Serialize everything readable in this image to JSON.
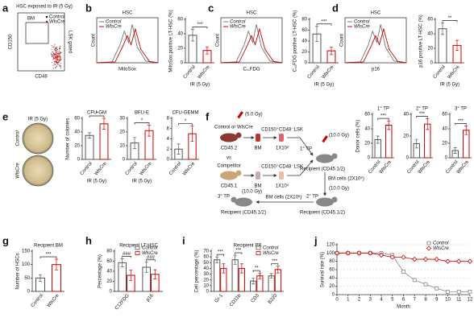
{
  "panel_labels": [
    "a",
    "b",
    "c",
    "d",
    "e",
    "f",
    "g",
    "h",
    "i",
    "j"
  ],
  "panel_a": {
    "title": "HSC exposed to IR (5 Gy)",
    "gate": "BM",
    "legend": [
      "Control",
      "WlsCre"
    ],
    "y_label": "CD150",
    "x_label": "CD48",
    "side_label": "LSK gated"
  },
  "histograms": [
    {
      "title": "HSC",
      "legend": [
        "Control",
        "WlsCre"
      ],
      "x_label": "MitoSox",
      "y_label": "Count"
    },
    {
      "title": "HSC",
      "legend": [
        "Control",
        "WlsCre"
      ],
      "x_label": "C₁₁FDG",
      "y_label": "Count"
    },
    {
      "title": "HSC",
      "legend": [
        "Control",
        "WlsCre"
      ],
      "x_label": "p16",
      "y_label": "Count"
    }
  ],
  "panel_e": {
    "title": "IR (5 Gy)",
    "rows": [
      "Control",
      "WlsCre"
    ]
  },
  "panel_f": {
    "dose_donor": "(5.0 Gy)",
    "donor": "Control or WlsCre",
    "donor_strain": "CD45.2",
    "donor_bm": "BM",
    "donor_cells": "CD150⁺CD48⁻LSK",
    "donor_number": "1X10²",
    "vs": "vs",
    "competitor": "Competitor",
    "competitor_strain": "CD45.1",
    "competitor_bm": "BM",
    "competitor_cells": "CD150⁺CD48⁻LSK",
    "competitor_number": "1X10⁵",
    "tp1": "1° TP",
    "dose1": "(10.0 Gy)",
    "recipient1": "Recipient (CD45.1/2)",
    "bm_cells1": "BM cells (2X10⁶)",
    "dose2": "(10.0 Gy)",
    "tp2": "2° TP",
    "recipient2": "Recipient (CD45.1/2)",
    "bm_cells2": "BM cells (2X10⁶)",
    "tp3": "3° TP",
    "dose3": "(10.0 Gy)",
    "recipient3": "Recipient (CD45.1/2)"
  },
  "chart_data": [
    {
      "type": "bar",
      "y_label": "MitoSox positive LT-HSC (%)",
      "x_label": "IR (5 Gy)",
      "categories": [
        "Control",
        "WlsCre"
      ],
      "values": [
        38,
        17
      ],
      "errors": [
        8,
        5
      ],
      "colors": [
        "#555555",
        "#cc0000"
      ],
      "ylim": [
        0,
        60
      ],
      "yticks": [
        0,
        20,
        40,
        60
      ],
      "significance": "***"
    },
    {
      "type": "bar",
      "y_label": "C₁₁FDG positive LT-HSC (%)",
      "x_label": "IR (5 Gy)",
      "categories": [
        "Control",
        "WlsCre"
      ],
      "values": [
        53,
        22
      ],
      "errors": [
        14,
        7
      ],
      "colors": [
        "#555555",
        "#cc0000"
      ],
      "ylim": [
        0,
        80
      ],
      "yticks": [
        0,
        20,
        40,
        60,
        80
      ],
      "significance": "***"
    },
    {
      "type": "bar",
      "y_label": "p16 positive LT-HSC (%)",
      "x_label": "IR (5 Gy)",
      "categories": [
        "Control",
        "WlsCre"
      ],
      "values": [
        47,
        24
      ],
      "errors": [
        8,
        7
      ],
      "colors": [
        "#555555",
        "#cc0000"
      ],
      "ylim": [
        0,
        60
      ],
      "yticks": [
        0,
        20,
        40,
        60
      ],
      "significance": "**"
    },
    {
      "type": "bar",
      "title": "CFU-GM",
      "y_label": "Number of colonies",
      "x_label": "IR (5 Gy)",
      "categories": [
        "Control",
        "WlsCre"
      ],
      "values": [
        35,
        52
      ],
      "errors": [
        4,
        8
      ],
      "colors": [
        "#555555",
        "#cc0000"
      ],
      "ylim": [
        0,
        60
      ],
      "yticks": [
        0,
        20,
        40,
        60
      ],
      "significance": "*"
    },
    {
      "type": "bar",
      "title": "BFU-E",
      "x_label": "IR (5 Gy)",
      "categories": [
        "Control",
        "WlsCre"
      ],
      "values": [
        12,
        21
      ],
      "errors": [
        4,
        4
      ],
      "colors": [
        "#555555",
        "#cc0000"
      ],
      "ylim": [
        0,
        30
      ],
      "yticks": [
        0,
        10,
        20,
        30
      ],
      "significance": "*"
    },
    {
      "type": "bar",
      "title": "CFU-GEMM",
      "categories": [
        "Control",
        "WlsCre"
      ],
      "values": [
        2,
        5
      ],
      "errors": [
        1,
        1.5
      ],
      "colors": [
        "#555555",
        "#cc0000"
      ],
      "ylim": [
        0,
        8
      ],
      "yticks": [
        0,
        2,
        4,
        6,
        8
      ],
      "significance": "*"
    },
    {
      "type": "bar",
      "title": "1° TP",
      "y_label": "Donor cells (%)",
      "categories": [
        "Control",
        "WlsCre"
      ],
      "values": [
        25,
        45
      ],
      "errors": [
        5,
        6
      ],
      "colors": [
        "#555555",
        "#cc0000"
      ],
      "ylim": [
        0,
        60
      ],
      "yticks": [
        0,
        20,
        40,
        60
      ],
      "significance": "***"
    },
    {
      "type": "bar",
      "title": "2° TP",
      "categories": [
        "Control",
        "WlsCre"
      ],
      "values": [
        13,
        31
      ],
      "errors": [
        4,
        5
      ],
      "colors": [
        "#555555",
        "#cc0000"
      ],
      "ylim": [
        0,
        40
      ],
      "yticks": [
        0,
        20,
        40
      ],
      "significance": "***"
    },
    {
      "type": "bar",
      "title": "3° TP",
      "categories": [
        "Control",
        "WlsCre"
      ],
      "values": [
        10,
        38
      ],
      "errors": [
        4,
        6
      ],
      "colors": [
        "#555555",
        "#cc0000"
      ],
      "ylim": [
        0,
        60
      ],
      "yticks": [
        0,
        20,
        40,
        60
      ],
      "significance": "***"
    },
    {
      "type": "bar",
      "title": "Recipient BM",
      "y_label": "Number of HSCs",
      "categories": [
        "Control",
        "WlsCre"
      ],
      "values": [
        50,
        100
      ],
      "errors": [
        12,
        20
      ],
      "colors": [
        "#555555",
        "#cc0000"
      ],
      "ylim": [
        0,
        150
      ],
      "yticks": [
        0,
        50,
        100,
        150
      ],
      "significance": "***"
    },
    {
      "type": "grouped_bar",
      "title": "Recipient LT-HSC",
      "y_label": "Percentage (%)",
      "categories": [
        "C12FDG",
        "p16"
      ],
      "series": [
        {
          "name": "Control",
          "color": "#555555",
          "values": [
            57,
            48
          ],
          "errors": [
            8,
            10
          ]
        },
        {
          "name": "WlsCre",
          "color": "#cc0000",
          "values": [
            32,
            34
          ],
          "errors": [
            10,
            9
          ]
        }
      ],
      "ylim": [
        0,
        80
      ],
      "yticks": [
        0,
        20,
        40,
        60,
        80
      ],
      "significance": [
        "###",
        "###"
      ],
      "legend": "top-right"
    },
    {
      "type": "grouped_bar",
      "title": "Recipient PB",
      "y_label": "Cell percentage (%)",
      "categories": [
        "Gr-1",
        "CD11b",
        "CD3",
        "B220"
      ],
      "series": [
        {
          "name": "Control",
          "color": "#555555",
          "values": [
            55,
            55,
            18,
            27
          ],
          "errors": [
            5,
            8,
            5,
            4
          ]
        },
        {
          "name": "WlsCre",
          "color": "#cc0000",
          "values": [
            40,
            40,
            27,
            38
          ],
          "errors": [
            8,
            8,
            5,
            6
          ]
        }
      ],
      "ylim": [
        0,
        70
      ],
      "yticks": [
        0,
        10,
        20,
        30,
        40,
        50,
        60,
        70
      ],
      "significance": [
        "***",
        "***",
        "**",
        "***"
      ],
      "legend": "top-right"
    },
    {
      "type": "line",
      "y_label": "Survival rate (%)",
      "x_label": "Month",
      "x": [
        0,
        1,
        2,
        3,
        4,
        5,
        6,
        7,
        8,
        9,
        10,
        11,
        12
      ],
      "series": [
        {
          "name": "Control",
          "color": "#888888",
          "marker": "square",
          "values": [
            100,
            100,
            100,
            100,
            100,
            95,
            55,
            35,
            25,
            15,
            7,
            7,
            7
          ]
        },
        {
          "name": "WlsCre",
          "color": "#cc0000",
          "marker": "diamond",
          "values": [
            100,
            100,
            100,
            100,
            95,
            90,
            90,
            85,
            85,
            85,
            80,
            80,
            80
          ]
        }
      ],
      "xlim": [
        0,
        12
      ],
      "xticks": [
        0,
        1,
        2,
        3,
        4,
        5,
        6,
        7,
        8,
        9,
        10,
        11,
        12
      ],
      "ylim": [
        0,
        120
      ],
      "yticks": [
        0,
        20,
        40,
        60,
        80,
        100,
        120
      ],
      "grid": true,
      "legend": "top-right"
    }
  ]
}
